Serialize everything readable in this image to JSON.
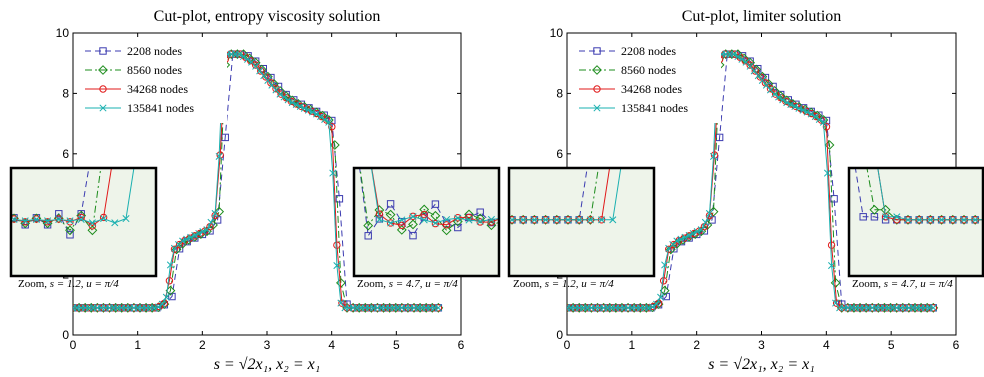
{
  "chart_data": [
    {
      "type": "line",
      "title": "Cut-plot, entropy viscosity solution",
      "xlabel": "s = √2x₁, x₂ = x₁",
      "ylabel": "",
      "xlim": [
        0,
        6
      ],
      "ylim": [
        0,
        10
      ],
      "xticks": [
        0,
        1,
        2,
        3,
        4,
        5,
        6
      ],
      "yticks": [
        0,
        2,
        4,
        6,
        8,
        10
      ],
      "legend_position": "top-left",
      "series": [
        {
          "name": "2208 nodes",
          "color": "#3b3bb0",
          "dash": "6,4",
          "marker": "square"
        },
        {
          "name": "8560 nodes",
          "color": "#1c8c1c",
          "dash": "7,3,2,3",
          "marker": "diamond"
        },
        {
          "name": "34268 nodes",
          "color": "#e01818",
          "dash": "",
          "marker": "circle"
        },
        {
          "name": "135841 nodes",
          "color": "#1ab0b0",
          "dash": "",
          "marker": "x"
        }
      ],
      "profile": {
        "x": [
          0,
          0.5,
          1.0,
          1.3,
          1.45,
          1.55,
          1.7,
          1.9,
          2.1,
          2.25,
          2.32,
          2.4,
          2.6,
          2.8,
          3.0,
          3.2,
          3.4,
          3.6,
          3.8,
          4.0,
          4.08,
          4.12,
          4.2,
          4.5,
          5.0,
          5.65
        ],
        "y": [
          0.9,
          0.9,
          0.9,
          0.9,
          1.1,
          2.8,
          3.1,
          3.3,
          3.5,
          4.2,
          9.0,
          9.3,
          9.3,
          9.0,
          8.5,
          8.0,
          7.7,
          7.5,
          7.3,
          7.0,
          3.0,
          1.2,
          0.9,
          0.9,
          0.9,
          0.9
        ]
      },
      "inset_left": {
        "caption_prefix": "Zoom, ",
        "caption_math": "s = 1.2, u = π/4",
        "mode": "oscillating"
      },
      "inset_right": {
        "caption_prefix": "Zoom, ",
        "caption_math": "s = 4.7, u = π/4",
        "mode": "oscillating"
      }
    },
    {
      "type": "line",
      "title": "Cut-plot, limiter solution",
      "xlabel": "s = √2x₁, x₂ = x₁",
      "ylabel": "",
      "xlim": [
        0,
        6
      ],
      "ylim": [
        0,
        10
      ],
      "xticks": [
        0,
        1,
        2,
        3,
        4,
        5,
        6
      ],
      "yticks": [
        0,
        2,
        4,
        6,
        8,
        10
      ],
      "legend_position": "top-left",
      "series": [
        {
          "name": "2208 nodes",
          "color": "#3b3bb0",
          "dash": "6,4",
          "marker": "square"
        },
        {
          "name": "8560 nodes",
          "color": "#1c8c1c",
          "dash": "7,3,2,3",
          "marker": "diamond"
        },
        {
          "name": "34268 nodes",
          "color": "#e01818",
          "dash": "",
          "marker": "circle"
        },
        {
          "name": "135841 nodes",
          "color": "#1ab0b0",
          "dash": "",
          "marker": "x"
        }
      ],
      "profile": {
        "x": [
          0,
          0.5,
          1.0,
          1.3,
          1.45,
          1.55,
          1.7,
          1.9,
          2.1,
          2.25,
          2.32,
          2.4,
          2.6,
          2.8,
          3.0,
          3.2,
          3.4,
          3.6,
          3.8,
          4.0,
          4.08,
          4.12,
          4.2,
          4.5,
          5.0,
          5.65
        ],
        "y": [
          0.9,
          0.9,
          0.9,
          0.9,
          1.1,
          2.8,
          3.1,
          3.3,
          3.5,
          4.2,
          9.0,
          9.3,
          9.3,
          9.0,
          8.5,
          8.0,
          7.7,
          7.5,
          7.3,
          7.0,
          3.0,
          1.2,
          0.9,
          0.9,
          0.9,
          0.9
        ]
      },
      "inset_left": {
        "caption_prefix": "Zoom, ",
        "caption_math": "s = 1.2, u = π/4",
        "mode": "smooth"
      },
      "inset_right": {
        "caption_prefix": "Zoom, ",
        "caption_math": "s = 4.7, u = π/4",
        "mode": "smooth"
      }
    }
  ]
}
